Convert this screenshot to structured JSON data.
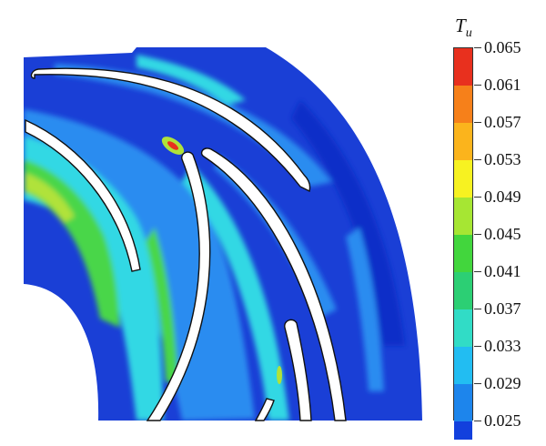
{
  "figure": {
    "legend": {
      "symbol": "T",
      "subscript": "u",
      "levels": [
        "0.065",
        "0.061",
        "0.057",
        "0.053",
        "0.049",
        "0.045",
        "0.041",
        "0.037",
        "0.033",
        "0.029",
        "0.025"
      ],
      "band_colors": [
        "#e8301e",
        "#f6801a",
        "#fbb41c",
        "#f7f221",
        "#a6e633",
        "#42d63d",
        "#2ccf74",
        "#31dcc6",
        "#22bdf2",
        "#1d85ec",
        "#1240dd"
      ]
    },
    "field_colors": {
      "background": "#1a3fd6",
      "deep": "#0e2fc8",
      "light_blue": "#2a8cf0",
      "cyan": "#30d8e4",
      "green": "#4ad64a",
      "yellow_green": "#b0e23a",
      "hot": "#e8301e",
      "blade": "#ffffff"
    }
  }
}
